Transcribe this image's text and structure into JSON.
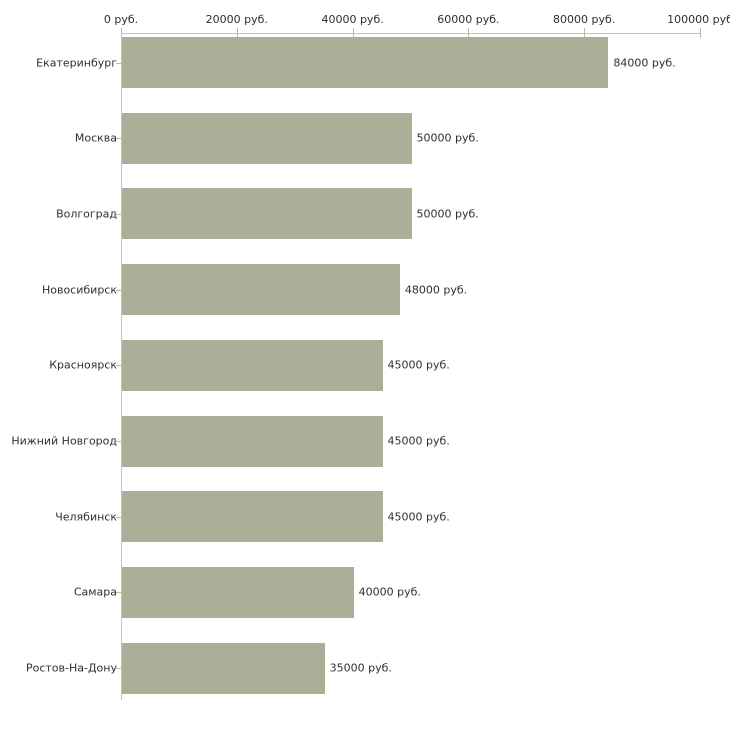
{
  "chart_data": {
    "type": "bar",
    "orientation": "horizontal",
    "title": "",
    "xlabel": "",
    "ylabel": "",
    "legend": "none",
    "grid": false,
    "axis_position": "top",
    "categories": [
      "Екатеринбург",
      "Москва",
      "Волгоград",
      "Новосибирск",
      "Красноярск",
      "Нижний Новгород",
      "Челябинск",
      "Самара",
      "Ростов-На-Дону"
    ],
    "values": [
      84000,
      50000,
      50000,
      48000,
      45000,
      45000,
      45000,
      40000,
      35000
    ],
    "value_labels": [
      "84000 руб.",
      "50000 руб.",
      "50000 руб.",
      "48000 руб.",
      "45000 руб.",
      "45000 руб.",
      "45000 руб.",
      "40000 руб.",
      "35000 руб."
    ],
    "x_ticks": [
      0,
      20000,
      40000,
      60000,
      80000,
      100000
    ],
    "x_tick_labels": [
      "0 руб.",
      "20000 руб.",
      "40000 руб.",
      "60000 руб.",
      "80000 руб.",
      "100000 руб"
    ],
    "xlim": [
      0,
      100000
    ],
    "colors": {
      "bar": "#a9b097",
      "axis_line": "#c3c3c3",
      "tick": "#c2bb8e",
      "text": "#2f2f2f",
      "background": "#ffffff"
    }
  }
}
